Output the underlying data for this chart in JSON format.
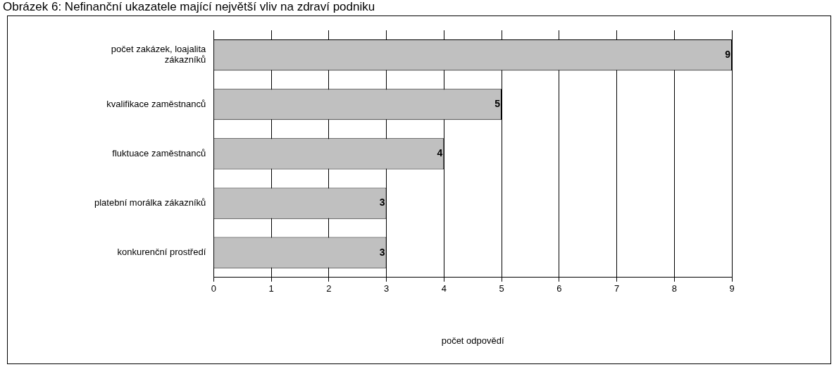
{
  "chart_data": {
    "type": "bar",
    "orientation": "horizontal",
    "title": "Obrázek 6: Nefinanční ukazatele mající největší vliv na zdraví podniku",
    "categories": [
      "počet zakázek, loajalita zákazníků",
      "kvalifikace zaměstnanců",
      "fluktuace zaměstnanců",
      "platební morálka zákazníků",
      "konkurenční prostředí"
    ],
    "values": [
      9,
      5,
      4,
      3,
      3
    ],
    "color": "#c0c0c0",
    "xlim": [
      0,
      9
    ],
    "xticks": [
      0,
      1,
      2,
      3,
      4,
      5,
      6,
      7,
      8,
      9
    ],
    "xlabel": "počet odpovědí",
    "grid": "x",
    "legend": false,
    "data_labels": true
  }
}
